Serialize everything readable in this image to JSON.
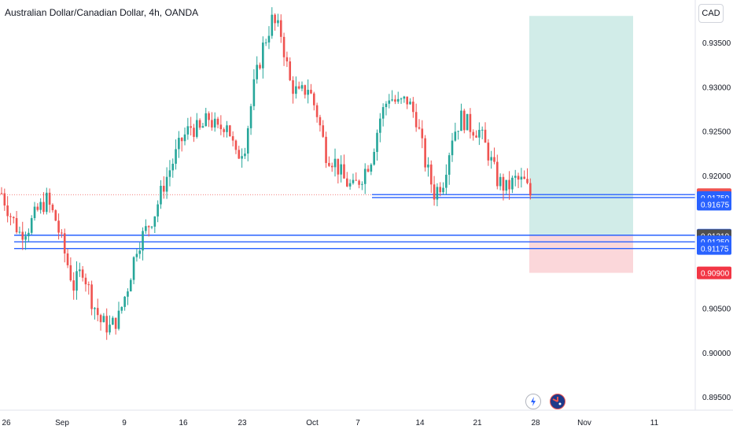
{
  "header": {
    "title": "Australian Dollar/Canadian Dollar, 4h, OANDA",
    "currency_button": "CAD"
  },
  "colors": {
    "up": "#26a69a",
    "down": "#ef5350",
    "level_line": "#2962ff",
    "target_zone": "#d1ece8",
    "stop_zone": "#fbd7da",
    "last_price_tag": "#ef5350",
    "level_tag": "#2962ff",
    "stop_tag": "#f23645",
    "mid_tag": "#4f4f4f"
  },
  "chart_data": {
    "type": "candlestick",
    "symbol": "AUDCAD",
    "timeframe": "4h",
    "ylim": [
      0.8935,
      0.9398
    ],
    "y_ticks": [
      "0.89500",
      "0.90000",
      "0.90500",
      "0.92000",
      "0.92500",
      "0.93000",
      "0.93500"
    ],
    "x_ticks": [
      "26",
      "Sep",
      "9",
      "16",
      "23",
      "Oct",
      "7",
      "14",
      "21",
      "28",
      "Nov",
      "11"
    ],
    "price_path": [
      [
        0,
        0.918
      ],
      [
        3,
        0.9155
      ],
      [
        6,
        0.9135
      ],
      [
        9,
        0.9142
      ],
      [
        12,
        0.916
      ],
      [
        15,
        0.9172
      ],
      [
        18,
        0.915
      ],
      [
        21,
        0.9112
      ],
      [
        24,
        0.9075
      ],
      [
        27,
        0.9095
      ],
      [
        30,
        0.906
      ],
      [
        33,
        0.9035
      ],
      [
        36,
        0.9028
      ],
      [
        39,
        0.904
      ],
      [
        42,
        0.9075
      ],
      [
        45,
        0.912
      ],
      [
        48,
        0.9138
      ],
      [
        51,
        0.9158
      ],
      [
        54,
        0.919
      ],
      [
        57,
        0.9215
      ],
      [
        60,
        0.924
      ],
      [
        63,
        0.9255
      ],
      [
        66,
        0.925
      ],
      [
        69,
        0.9265
      ],
      [
        72,
        0.925
      ],
      [
        75,
        0.9262
      ],
      [
        78,
        0.922
      ],
      [
        81,
        0.9235
      ],
      [
        84,
        0.93
      ],
      [
        87,
        0.9345
      ],
      [
        90,
        0.9375
      ],
      [
        93,
        0.936
      ],
      [
        96,
        0.9305
      ],
      [
        99,
        0.929
      ],
      [
        102,
        0.93
      ],
      [
        105,
        0.927
      ],
      [
        108,
        0.9225
      ],
      [
        111,
        0.9215
      ],
      [
        114,
        0.9195
      ],
      [
        117,
        0.9185
      ],
      [
        120,
        0.92
      ],
      [
        123,
        0.922
      ],
      [
        126,
        0.9265
      ],
      [
        129,
        0.929
      ],
      [
        132,
        0.928
      ],
      [
        135,
        0.9285
      ],
      [
        138,
        0.9265
      ],
      [
        141,
        0.9215
      ],
      [
        144,
        0.918
      ],
      [
        147,
        0.9195
      ],
      [
        150,
        0.9245
      ],
      [
        153,
        0.9265
      ],
      [
        156,
        0.9255
      ],
      [
        159,
        0.925
      ],
      [
        162,
        0.9225
      ],
      [
        165,
        0.9195
      ],
      [
        168,
        0.9185
      ],
      [
        171,
        0.9195
      ],
      [
        174,
        0.9192
      ],
      [
        176,
        0.9178
      ]
    ],
    "levels": [
      0.91783,
      0.9175,
      0.91325,
      0.9125,
      0.91175
    ],
    "position": {
      "entry": 0.91325,
      "target": 0.938,
      "stop": 0.909
    },
    "price_tags": [
      {
        "label": "0.91783",
        "value": 0.91783,
        "kind": "last"
      },
      {
        "label": "0.91750",
        "value": 0.9175,
        "kind": "level"
      },
      {
        "label": "0.91675",
        "value": 0.91675,
        "kind": "level"
      },
      {
        "label": "0.91325",
        "value": 0.91325,
        "kind": "level"
      },
      {
        "label": "0.91319",
        "value": 0.91319,
        "kind": "mid"
      },
      {
        "label": "0.91250",
        "value": 0.9125,
        "kind": "level"
      },
      {
        "label": "0.91175",
        "value": 0.91175,
        "kind": "level"
      },
      {
        "label": "0.90900",
        "value": 0.909,
        "kind": "stop"
      }
    ]
  }
}
